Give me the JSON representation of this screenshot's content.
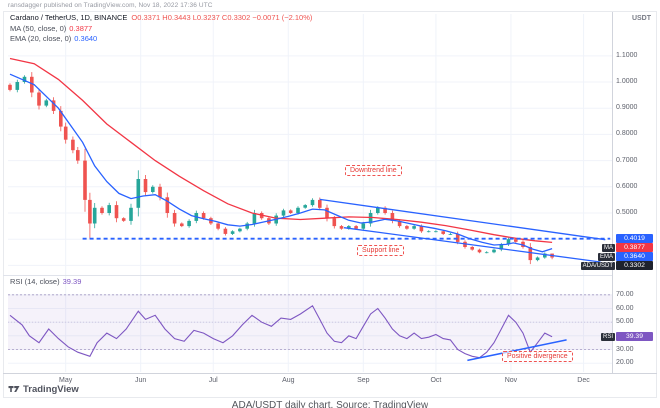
{
  "meta": {
    "credit": "ransdagger published on TradingView.com, Nov 18, 2022 17:36 UTC"
  },
  "header": {
    "symbol": "Cardano / TetherUS, 1D, BINANCE",
    "ohlc": "O0.3371  H0.3443  L0.3237  C0.3302  −0.0071 (−2.10%)",
    "ma_label": "MA (50, close, 0)",
    "ma_value": "0.3877",
    "ema_label": "EMA (20, close, 0)",
    "ema_value": "0.3640"
  },
  "rsi_header": {
    "label": "RSI (14, close)",
    "value": "39.39"
  },
  "price_scale": {
    "currency": "USDT"
  },
  "annotations": {
    "downtrend_label": "Downtrend line",
    "support_label": "Support line",
    "divergence_label": "Positive divergence"
  },
  "watermark": "TradingView",
  "caption": "ADA/USDT daily chart. Source: TradingView",
  "scale_badges": [
    {
      "tag": "",
      "value": "0.4019",
      "color": "#2962ff",
      "pane": "price",
      "at": 0.4019
    },
    {
      "tag": "MA",
      "value": "0.3877",
      "color": "#f23645",
      "pane": "price",
      "at": 0.3877
    },
    {
      "tag": "EMA",
      "value": "0.3640",
      "color": "#2962ff",
      "pane": "price",
      "at": 0.364
    },
    {
      "tag": "ADA/USDT",
      "value": "0.3302",
      "color": "#1e222d",
      "pane": "price",
      "at": 0.3302
    },
    {
      "tag": "RSI",
      "value": "39.39",
      "color": "#7e57c2",
      "pane": "rsi",
      "at": 39.39
    }
  ],
  "chart_data": {
    "type": "candlestick",
    "symbol": "ADA/USDT",
    "interval": "1D",
    "exchange": "BINANCE",
    "x_unit": "day index (0 = mid-April 2022, axis runs to early Dec 2022)",
    "last": {
      "open": 0.3371,
      "high": 0.3443,
      "low": 0.3237,
      "close": 0.3302,
      "change": -0.0071,
      "change_pct": -2.1
    },
    "indicators": {
      "ma50": 0.3877,
      "ema20": 0.364,
      "rsi14": 39.39
    },
    "support_level": 0.4019,
    "support_span": [
      30,
      248
    ],
    "price_axis": {
      "ticks": [
        1.1,
        1.0,
        0.9,
        0.8,
        0.7,
        0.6,
        0.5,
        0.4,
        0.3
      ],
      "range": [
        0.29,
        1.13
      ]
    },
    "rsi_axis": {
      "ticks": [
        70,
        60,
        50,
        40,
        30,
        20
      ],
      "range": [
        15,
        75
      ],
      "bands": [
        70,
        50,
        30
      ]
    },
    "months": [
      {
        "label": "May",
        "day": 23
      },
      {
        "label": "Jun",
        "day": 54
      },
      {
        "label": "Jul",
        "day": 84
      },
      {
        "label": "Aug",
        "day": 115
      },
      {
        "label": "Sep",
        "day": 146
      },
      {
        "label": "Oct",
        "day": 176
      },
      {
        "label": "Nov",
        "day": 207
      },
      {
        "label": "Dec",
        "day": 237
      }
    ],
    "closes": [
      [
        0,
        0.97
      ],
      [
        3,
        1.0
      ],
      [
        6,
        1.02
      ],
      [
        9,
        0.96
      ],
      [
        12,
        0.91
      ],
      [
        15,
        0.93
      ],
      [
        18,
        0.89
      ],
      [
        21,
        0.83
      ],
      [
        23,
        0.78
      ],
      [
        26,
        0.74
      ],
      [
        28,
        0.7
      ],
      [
        31,
        0.55
      ],
      [
        33,
        0.46
      ],
      [
        35,
        0.52
      ],
      [
        38,
        0.5
      ],
      [
        41,
        0.53
      ],
      [
        44,
        0.48
      ],
      [
        47,
        0.47
      ],
      [
        50,
        0.52
      ],
      [
        53,
        0.63
      ],
      [
        56,
        0.58
      ],
      [
        59,
        0.6
      ],
      [
        62,
        0.56
      ],
      [
        65,
        0.5
      ],
      [
        68,
        0.46
      ],
      [
        71,
        0.45
      ],
      [
        74,
        0.47
      ],
      [
        77,
        0.5
      ],
      [
        80,
        0.48
      ],
      [
        83,
        0.46
      ],
      [
        86,
        0.44
      ],
      [
        89,
        0.42
      ],
      [
        92,
        0.43
      ],
      [
        95,
        0.44
      ],
      [
        98,
        0.46
      ],
      [
        101,
        0.5
      ],
      [
        104,
        0.48
      ],
      [
        107,
        0.46
      ],
      [
        110,
        0.49
      ],
      [
        113,
        0.51
      ],
      [
        116,
        0.5
      ],
      [
        119,
        0.52
      ],
      [
        122,
        0.53
      ],
      [
        125,
        0.55
      ],
      [
        128,
        0.52
      ],
      [
        131,
        0.48
      ],
      [
        134,
        0.45
      ],
      [
        137,
        0.44
      ],
      [
        140,
        0.45
      ],
      [
        143,
        0.44
      ],
      [
        146,
        0.46
      ],
      [
        149,
        0.5
      ],
      [
        152,
        0.52
      ],
      [
        155,
        0.5
      ],
      [
        158,
        0.47
      ],
      [
        161,
        0.45
      ],
      [
        164,
        0.44
      ],
      [
        167,
        0.45
      ],
      [
        170,
        0.43
      ],
      [
        173,
        0.43
      ],
      [
        176,
        0.43
      ],
      [
        179,
        0.42
      ],
      [
        182,
        0.42
      ],
      [
        185,
        0.39
      ],
      [
        188,
        0.37
      ],
      [
        191,
        0.36
      ],
      [
        194,
        0.35
      ],
      [
        197,
        0.35
      ],
      [
        200,
        0.36
      ],
      [
        203,
        0.38
      ],
      [
        206,
        0.4
      ],
      [
        209,
        0.39
      ],
      [
        212,
        0.37
      ],
      [
        215,
        0.32
      ],
      [
        218,
        0.33
      ],
      [
        221,
        0.345
      ],
      [
        224,
        0.3302
      ]
    ],
    "low_overrides": [
      [
        33,
        0.401
      ],
      [
        215,
        0.305
      ],
      [
        224,
        0.3237
      ]
    ],
    "high_overrides": [
      [
        224,
        0.3443
      ]
    ],
    "ma50_line": [
      [
        0,
        1.09
      ],
      [
        10,
        1.07
      ],
      [
        20,
        1.01
      ],
      [
        30,
        0.93
      ],
      [
        40,
        0.84
      ],
      [
        50,
        0.77
      ],
      [
        60,
        0.7
      ],
      [
        70,
        0.64
      ],
      [
        80,
        0.585
      ],
      [
        90,
        0.535
      ],
      [
        100,
        0.5
      ],
      [
        110,
        0.48
      ],
      [
        120,
        0.475
      ],
      [
        130,
        0.48
      ],
      [
        140,
        0.485
      ],
      [
        150,
        0.483
      ],
      [
        160,
        0.475
      ],
      [
        170,
        0.465
      ],
      [
        180,
        0.452
      ],
      [
        190,
        0.435
      ],
      [
        200,
        0.417
      ],
      [
        210,
        0.402
      ],
      [
        217,
        0.394
      ],
      [
        224,
        0.3877
      ]
    ],
    "ema20_line": [
      [
        0,
        1.03
      ],
      [
        10,
        0.99
      ],
      [
        20,
        0.9
      ],
      [
        30,
        0.77
      ],
      [
        35,
        0.68
      ],
      [
        40,
        0.62
      ],
      [
        45,
        0.575
      ],
      [
        50,
        0.555
      ],
      [
        55,
        0.565
      ],
      [
        60,
        0.57
      ],
      [
        65,
        0.545
      ],
      [
        70,
        0.515
      ],
      [
        75,
        0.49
      ],
      [
        80,
        0.478
      ],
      [
        85,
        0.468
      ],
      [
        90,
        0.455
      ],
      [
        95,
        0.45
      ],
      [
        100,
        0.456
      ],
      [
        105,
        0.466
      ],
      [
        110,
        0.476
      ],
      [
        115,
        0.487
      ],
      [
        120,
        0.5
      ],
      [
        125,
        0.515
      ],
      [
        130,
        0.512
      ],
      [
        135,
        0.492
      ],
      [
        140,
        0.472
      ],
      [
        145,
        0.462
      ],
      [
        150,
        0.466
      ],
      [
        155,
        0.476
      ],
      [
        160,
        0.47
      ],
      [
        165,
        0.46
      ],
      [
        170,
        0.45
      ],
      [
        175,
        0.442
      ],
      [
        180,
        0.432
      ],
      [
        185,
        0.42
      ],
      [
        190,
        0.402
      ],
      [
        195,
        0.388
      ],
      [
        200,
        0.378
      ],
      [
        205,
        0.38
      ],
      [
        208,
        0.386
      ],
      [
        212,
        0.378
      ],
      [
        216,
        0.362
      ],
      [
        220,
        0.352
      ],
      [
        224,
        0.364
      ]
    ],
    "rsi_line": [
      [
        0,
        55
      ],
      [
        5,
        48
      ],
      [
        8,
        40
      ],
      [
        12,
        35
      ],
      [
        16,
        45
      ],
      [
        20,
        38
      ],
      [
        24,
        32
      ],
      [
        28,
        28
      ],
      [
        33,
        25
      ],
      [
        36,
        35
      ],
      [
        40,
        42
      ],
      [
        44,
        38
      ],
      [
        48,
        45
      ],
      [
        53,
        58
      ],
      [
        56,
        52
      ],
      [
        60,
        55
      ],
      [
        64,
        45
      ],
      [
        68,
        38
      ],
      [
        72,
        36
      ],
      [
        76,
        44
      ],
      [
        80,
        42
      ],
      [
        84,
        38
      ],
      [
        88,
        35
      ],
      [
        92,
        40
      ],
      [
        96,
        48
      ],
      [
        100,
        55
      ],
      [
        104,
        50
      ],
      [
        108,
        47
      ],
      [
        112,
        53
      ],
      [
        116,
        52
      ],
      [
        120,
        56
      ],
      [
        125,
        62
      ],
      [
        128,
        52
      ],
      [
        131,
        42
      ],
      [
        134,
        36
      ],
      [
        137,
        35
      ],
      [
        140,
        40
      ],
      [
        143,
        38
      ],
      [
        146,
        47
      ],
      [
        149,
        56
      ],
      [
        152,
        60
      ],
      [
        155,
        53
      ],
      [
        158,
        45
      ],
      [
        161,
        40
      ],
      [
        164,
        38
      ],
      [
        167,
        42
      ],
      [
        170,
        38
      ],
      [
        173,
        39
      ],
      [
        176,
        41
      ],
      [
        179,
        38
      ],
      [
        182,
        37
      ],
      [
        185,
        30
      ],
      [
        188,
        27
      ],
      [
        191,
        25
      ],
      [
        194,
        24
      ],
      [
        197,
        28
      ],
      [
        200,
        35
      ],
      [
        203,
        45
      ],
      [
        206,
        55
      ],
      [
        209,
        50
      ],
      [
        212,
        42
      ],
      [
        215,
        28
      ],
      [
        218,
        35
      ],
      [
        221,
        42
      ],
      [
        224,
        39.39
      ]
    ],
    "channel": {
      "upper": [
        [
          128,
          0.552
        ],
        [
          246,
          0.398
        ]
      ],
      "lower": [
        [
          138,
          0.444
        ],
        [
          244,
          0.313
        ]
      ]
    },
    "divergence_line": [
      [
        189,
        22
      ],
      [
        230,
        37
      ]
    ]
  }
}
